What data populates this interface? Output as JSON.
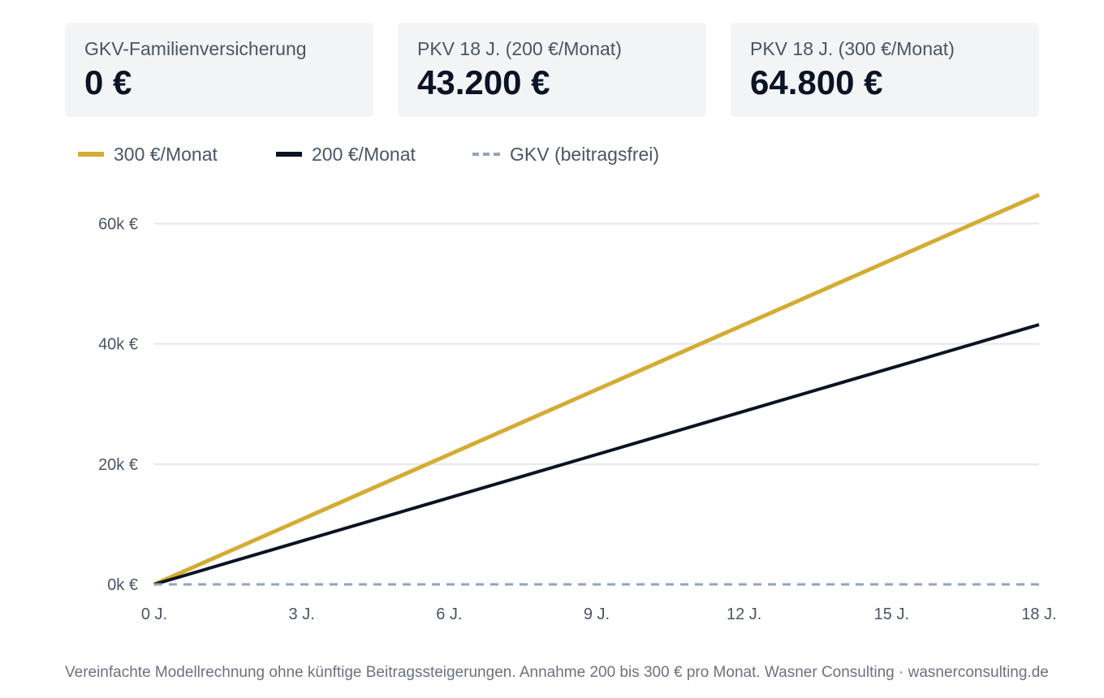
{
  "cards": [
    {
      "label": "GKV-Familienversicherung",
      "value": "0 €"
    },
    {
      "label": "PKV 18 J. (200 €/Monat)",
      "value": "43.200 €"
    },
    {
      "label": "PKV 18 J. (300 €/Monat)",
      "value": "64.800 €"
    }
  ],
  "legend": [
    {
      "label": "300 €/Monat",
      "color": "#d4ac34",
      "style": "solid"
    },
    {
      "label": "200 €/Monat",
      "color": "#0b1324",
      "style": "solid"
    },
    {
      "label": "GKV (beitragsfrei)",
      "color": "#94a3b8",
      "style": "dashed"
    }
  ],
  "chart_data": {
    "type": "line",
    "x": [
      0,
      3,
      6,
      9,
      12,
      15,
      18
    ],
    "x_tick_labels": [
      "0 J.",
      "3 J.",
      "6 J.",
      "9 J.",
      "12 J.",
      "15 J.",
      "18 J."
    ],
    "y_ticks": [
      0,
      20000,
      40000,
      60000
    ],
    "y_tick_labels": [
      "0k €",
      "20k €",
      "40k €",
      "60k €"
    ],
    "xlim": [
      0,
      18
    ],
    "ylim": [
      0,
      64800
    ],
    "grid": true,
    "legend_position": "top-left",
    "series": [
      {
        "name": "300 €/Monat",
        "color": "#d4ac34",
        "dashed": false,
        "values": [
          0,
          10800,
          21600,
          32400,
          43200,
          54000,
          64800
        ]
      },
      {
        "name": "200 €/Monat",
        "color": "#0b1324",
        "dashed": false,
        "values": [
          0,
          7200,
          14400,
          21600,
          28800,
          36000,
          43200
        ]
      },
      {
        "name": "GKV (beitragsfrei)",
        "color": "#94a3b8",
        "dashed": true,
        "values": [
          0,
          0,
          0,
          0,
          0,
          0,
          0
        ]
      }
    ]
  },
  "footnote": "Vereinfachte Modellrechnung ohne künftige Beitragssteigerungen. Annahme 200 bis 300 € pro Monat. Wasner Consulting · wasnerconsulting.de"
}
